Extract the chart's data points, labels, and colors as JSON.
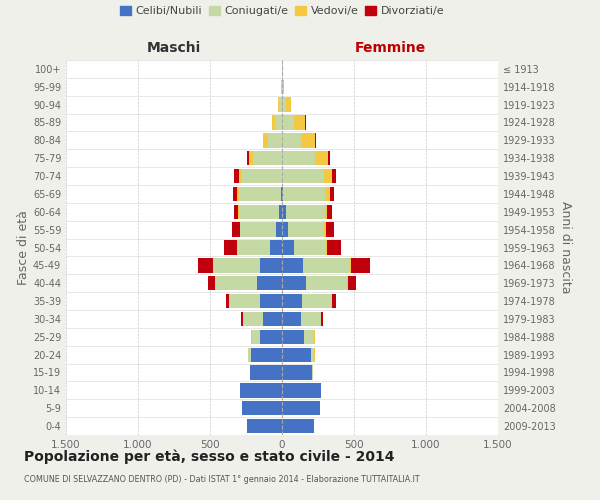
{
  "age_groups": [
    "0-4",
    "5-9",
    "10-14",
    "15-19",
    "20-24",
    "25-29",
    "30-34",
    "35-39",
    "40-44",
    "45-49",
    "50-54",
    "55-59",
    "60-64",
    "65-69",
    "70-74",
    "75-79",
    "80-84",
    "85-89",
    "90-94",
    "95-99",
    "100+"
  ],
  "birth_years": [
    "2009-2013",
    "2004-2008",
    "1999-2003",
    "1994-1998",
    "1989-1993",
    "1984-1988",
    "1979-1983",
    "1974-1978",
    "1969-1973",
    "1964-1968",
    "1959-1963",
    "1954-1958",
    "1949-1953",
    "1944-1948",
    "1939-1943",
    "1934-1938",
    "1929-1933",
    "1924-1928",
    "1919-1923",
    "1914-1918",
    "≤ 1913"
  ],
  "males": {
    "celibe": [
      240,
      280,
      290,
      220,
      215,
      150,
      130,
      155,
      175,
      150,
      80,
      40,
      20,
      10,
      0,
      0,
      0,
      0,
      0,
      0,
      0
    ],
    "coniugato": [
      0,
      0,
      0,
      5,
      20,
      60,
      140,
      210,
      290,
      330,
      230,
      250,
      280,
      290,
      280,
      200,
      100,
      50,
      20,
      5,
      0
    ],
    "vedovo": [
      0,
      0,
      0,
      0,
      2,
      2,
      2,
      2,
      2,
      2,
      2,
      5,
      5,
      10,
      20,
      30,
      30,
      20,
      5,
      2,
      0
    ],
    "divorziato": [
      0,
      0,
      0,
      0,
      2,
      5,
      10,
      20,
      50,
      100,
      90,
      50,
      30,
      30,
      30,
      10,
      5,
      0,
      0,
      0,
      0
    ]
  },
  "females": {
    "nubile": [
      220,
      265,
      270,
      210,
      200,
      155,
      130,
      140,
      170,
      145,
      80,
      45,
      25,
      10,
      0,
      0,
      0,
      0,
      0,
      0,
      0
    ],
    "coniugata": [
      0,
      0,
      0,
      5,
      25,
      70,
      140,
      205,
      280,
      330,
      225,
      250,
      275,
      290,
      290,
      230,
      130,
      80,
      30,
      10,
      5
    ],
    "vedova": [
      0,
      0,
      0,
      0,
      2,
      2,
      2,
      3,
      5,
      5,
      5,
      10,
      15,
      30,
      60,
      90,
      100,
      80,
      30,
      5,
      2
    ],
    "divorziata": [
      0,
      0,
      0,
      0,
      2,
      5,
      10,
      30,
      60,
      130,
      100,
      55,
      35,
      30,
      25,
      10,
      8,
      5,
      2,
      0,
      0
    ]
  },
  "colors": {
    "celibe": "#4472C4",
    "coniugato": "#C5D9A4",
    "vedovo": "#F5C842",
    "divorziato": "#C0000C"
  },
  "title": "Popolazione per età, sesso e stato civile - 2014",
  "subtitle": "COMUNE DI SELVAZZANO DENTRO (PD) - Dati ISTAT 1° gennaio 2014 - Elaborazione TUTTAITALIA.IT",
  "xlabel_left": "Maschi",
  "xlabel_right": "Femmine",
  "ylabel_left": "Fasce di età",
  "ylabel_right": "Anni di nascita",
  "xlim": 1500,
  "bg_color": "#f0f0eb",
  "plot_bg": "#ffffff"
}
